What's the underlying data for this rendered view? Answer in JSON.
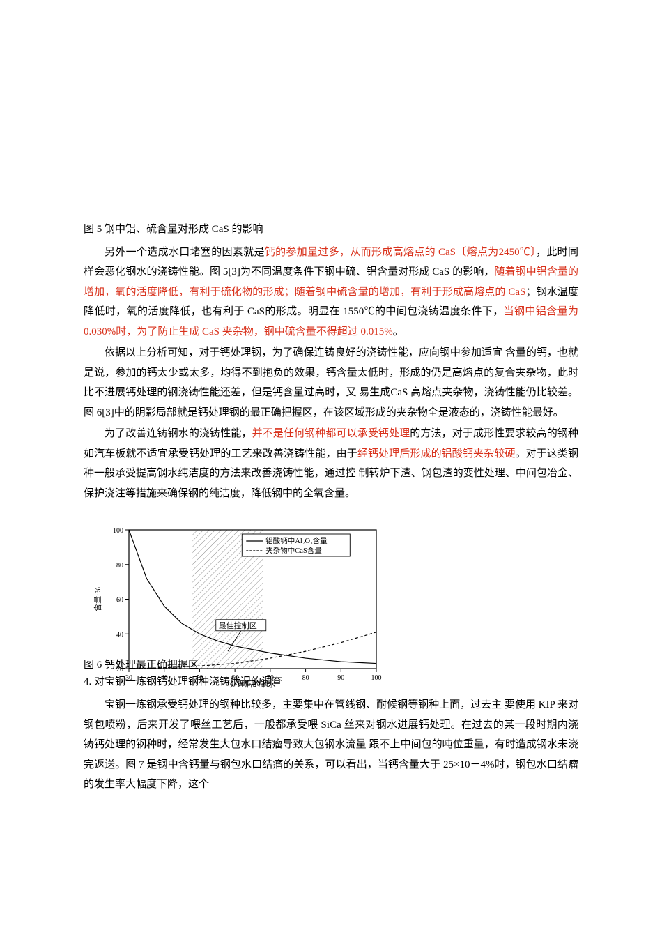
{
  "caption_fig5": "图 5 钢中铝、硫含量对形成 CaS 的影响",
  "para1_a": "另外一个造成水口堵塞的因素就是",
  "para1_red1": "钙的参加量过多，从而形成高熔点的 CaS〔熔点为2450℃〕",
  "para1_b": "，此时同样会恶化钢水的浇铸性能。图 5[3]为不同温度条件下钢中硫、铝含量对形成 CaS 的影响，",
  "para1_red2": "随着钢中铝含量的增加，氧的活度降低，有利于硫化物的形成；随着钢中硫含量的增加，有利于形成高熔点的 CaS",
  "para1_c": "；钢水温度降低时，氧的活度降低，也有利于 CaS的形成。明显在 1550℃的中间包浇铸温度条件下，",
  "para1_red3": "当钢中铝含量为 0.030%时，为了防止生成 CaS 夹杂物，钢中硫含量不得超过 0.015%",
  "para1_d": "。",
  "para2": "依据以上分析可知，对于钙处理钢，为了确保连铸良好的浇铸性能，应向钢中参加适宜 含量的钙，也就是说，参加的钙太少或太多，均得不到抱负的效果，钙含量太低时，形成的仍是高熔点的复合夹杂物，此时比不进展钙处理的钢浇铸性能还差，但是钙含量过高时，又 易生成CaS 高熔点夹杂物，浇铸性能仍比较差。图 6[3]中的阴影局部就是钙处理钢的最正确把握区，在该区域形成的夹杂物全是液态的，浇铸性能最好。",
  "para3_a": "为了改善连铸钢水的浇铸性能，",
  "para3_red1": "并不是任何钢种都可以承受钙处理",
  "para3_b": "的方法，对于成形性要求较高的钢种如汽车板就不适宜承受钙处理的工艺来改善浇铸性能，由于",
  "para3_red2": "经钙处理后形成的铝酸钙夹杂较硬",
  "para3_c": "。对于这类钢种一般承受提高钢水纯洁度的方法来改善浇铸性能，通过控 制转炉下渣、钢包渣的变性处理、中间包冶金、保护浇注等措施来确保钢的纯洁度，降低钢中的全氧含量。",
  "caption_fig6": "图 6 钙处理最正确把握区",
  "section4_title": "4. 对宝钢一炼钢钙处理钢种浇铸状况的调查",
  "para4": "宝钢一炼钢承受钙处理的钢种比较多，主要集中在管线钢、耐候钢等钢种上面，过去主 要使用 KIP 来对钢包喷粉，后来开发了喂丝工艺后，一般都承受喂 SiCa 丝来对钢水进展钙处理。在过去的某一段时期内浇铸钙处理的钢种时，经常发生大包水口结瘤导致大包钢水流量 跟不上中间包的吨位重量，有时造成钢水未浇完返送。图 7 是钢中含钙量与钢包水口结瘤的关系，可以看出，当钙含量大于 25×10－4%时，钢包水口结瘤的发生率大幅度下降，这个",
  "chart": {
    "type": "line",
    "xlabel": "处理后的钢水",
    "ylabel": "含量·%",
    "xlim": [
      30,
      100
    ],
    "ylim": [
      20,
      100
    ],
    "xticks": [
      30,
      40,
      50,
      60,
      70,
      80,
      90,
      100
    ],
    "yticks": [
      20,
      40,
      60,
      80,
      100
    ],
    "legend": {
      "line1": "铝酸钙中Al₂O₃含量",
      "line2": "夹杂物中CaS含量",
      "style1": "solid",
      "style2": "dashed"
    },
    "annotation": "最佳控制区",
    "series_solid": [
      {
        "x": 30,
        "y": 100
      },
      {
        "x": 35,
        "y": 72
      },
      {
        "x": 40,
        "y": 56
      },
      {
        "x": 45,
        "y": 46
      },
      {
        "x": 50,
        "y": 40
      },
      {
        "x": 55,
        "y": 36
      },
      {
        "x": 60,
        "y": 33
      },
      {
        "x": 70,
        "y": 29
      },
      {
        "x": 80,
        "y": 26
      },
      {
        "x": 90,
        "y": 24
      },
      {
        "x": 100,
        "y": 23
      }
    ],
    "series_dashed": [
      {
        "x": 30,
        "y": 20
      },
      {
        "x": 40,
        "y": 20.5
      },
      {
        "x": 50,
        "y": 21.5
      },
      {
        "x": 60,
        "y": 23
      },
      {
        "x": 70,
        "y": 26
      },
      {
        "x": 80,
        "y": 30
      },
      {
        "x": 90,
        "y": 35
      },
      {
        "x": 100,
        "y": 41
      }
    ],
    "shade_x_range": [
      48,
      68
    ],
    "colors": {
      "axis": "#000000",
      "line": "#000000",
      "background": "#ffffff"
    },
    "fontsize_label": 11,
    "fontsize_tick": 10,
    "line_width": 1.2
  }
}
